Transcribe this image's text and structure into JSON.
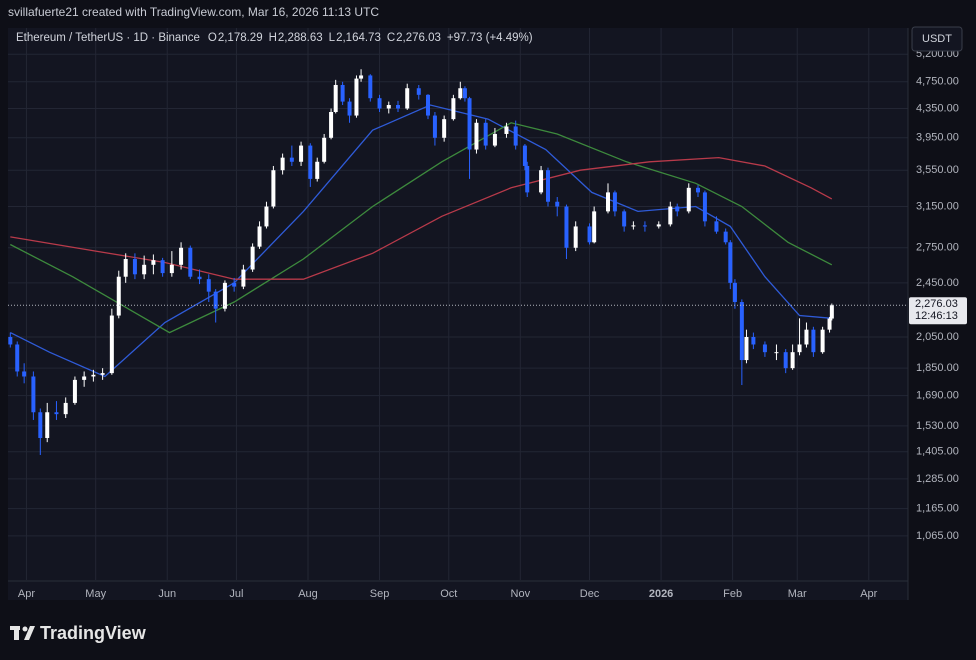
{
  "header": {
    "credit": "svillafuerte21 created with TradingView.com, Mar 16, 2026 11:13 UTC",
    "logo": "TradingView"
  },
  "chart_data": {
    "type": "candlestick",
    "symbol": "Ethereum / TetherUS · 1D · Binance",
    "ohlc_legend": [
      {
        "label": "O",
        "value": "2,178.29"
      },
      {
        "label": "H",
        "value": "2,288.63"
      },
      {
        "label": "L",
        "value": "2,164.73"
      },
      {
        "label": "C",
        "value": "2,276.03"
      }
    ],
    "change": "+97.73 (+4.49%)",
    "currency": "USDT",
    "last_price_label": "2,276.03",
    "countdown": "12:46:13",
    "log_scale": true,
    "grid": true,
    "up_color": "#ffffff",
    "down_color": "#2962ff",
    "xlim": [
      -8,
      382
    ],
    "xticks": [
      {
        "value": 0,
        "label": "Apr"
      },
      {
        "value": 30,
        "label": "May"
      },
      {
        "value": 61,
        "label": "Jun"
      },
      {
        "value": 91,
        "label": "Jul"
      },
      {
        "value": 122,
        "label": "Aug"
      },
      {
        "value": 153,
        "label": "Sep"
      },
      {
        "value": 183,
        "label": "Oct"
      },
      {
        "value": 214,
        "label": "Nov"
      },
      {
        "value": 244,
        "label": "Dec"
      },
      {
        "value": 275,
        "label": "2026"
      },
      {
        "value": 306,
        "label": "Feb"
      },
      {
        "value": 334,
        "label": "Mar"
      },
      {
        "value": 365,
        "label": "Apr"
      }
    ],
    "ylim": [
      921,
      5670
    ],
    "yticks": [
      {
        "value": 1065,
        "label": "1,065.00"
      },
      {
        "value": 1165,
        "label": "1,165.00"
      },
      {
        "value": 1285,
        "label": "1,285.00"
      },
      {
        "value": 1405,
        "label": "1,405.00"
      },
      {
        "value": 1530,
        "label": "1,530.00"
      },
      {
        "value": 1690,
        "label": "1,690.00"
      },
      {
        "value": 1850,
        "label": "1,850.00"
      },
      {
        "value": 2050,
        "label": "2,050.00"
      },
      {
        "value": 2450,
        "label": "2,450.00"
      },
      {
        "value": 2750,
        "label": "2,750.00"
      },
      {
        "value": 3150,
        "label": "3,150.00"
      },
      {
        "value": 3550,
        "label": "3,550.00"
      },
      {
        "value": 3950,
        "label": "3,950.00"
      },
      {
        "value": 4350,
        "label": "4,350.00"
      },
      {
        "value": 4750,
        "label": "4,750.00"
      },
      {
        "value": 5200,
        "label": "5,200.00"
      }
    ],
    "candles": {
      "x": [
        -7,
        -4,
        -1,
        3,
        6,
        9,
        13,
        17,
        21,
        25,
        29,
        33,
        37,
        40,
        43,
        47,
        51,
        55,
        59,
        63,
        67,
        71,
        75,
        79,
        82,
        86,
        90,
        94,
        98,
        101,
        104,
        107,
        111,
        115,
        119,
        123,
        126,
        129,
        132,
        134,
        137,
        140,
        143,
        145,
        149,
        153,
        157,
        161,
        165,
        170,
        174,
        177,
        181,
        185,
        188,
        190,
        192,
        195,
        199,
        203,
        208,
        212,
        216,
        217,
        223,
        226,
        230,
        234,
        238,
        244,
        246,
        252,
        255,
        259,
        263,
        268,
        274,
        279,
        282,
        287,
        291,
        294,
        299,
        303,
        305,
        307,
        310,
        312,
        315,
        320,
        325,
        329,
        332,
        335,
        338,
        341,
        345,
        348,
        349
      ],
      "open": [
        2050,
        2000,
        1830,
        1800,
        1600,
        1470,
        1600,
        1590,
        1650,
        1780,
        1800,
        1810,
        1820,
        2200,
        2500,
        2650,
        2520,
        2600,
        2640,
        2530,
        2600,
        2750,
        2500,
        2480,
        2380,
        2250,
        2450,
        2420,
        2560,
        2760,
        2950,
        3150,
        3550,
        3700,
        3650,
        3850,
        3450,
        3650,
        3950,
        4300,
        4700,
        4450,
        4250,
        4800,
        4850,
        4500,
        4350,
        4400,
        4350,
        4650,
        4550,
        4250,
        3950,
        4200,
        4500,
        4650,
        4500,
        3800,
        4150,
        3850,
        4000,
        4100,
        3850,
        3600,
        3300,
        3550,
        3200,
        3150,
        2750,
        2950,
        2800,
        3100,
        3300,
        3100,
        2950,
        2960,
        2950,
        2970,
        3150,
        3100,
        3350,
        3300,
        3000,
        2900,
        2800,
        2450,
        2300,
        1900,
        2050,
        2000,
        1950,
        1950,
        1850,
        1950,
        2000,
        2100,
        1950,
        2100,
        2178.29
      ],
      "high": [
        2080,
        2020,
        1880,
        1830,
        1620,
        1650,
        1660,
        1680,
        1800,
        1830,
        1840,
        1850,
        2250,
        2550,
        2700,
        2700,
        2680,
        2690,
        2660,
        2720,
        2800,
        2770,
        2560,
        2520,
        2400,
        2470,
        2490,
        2600,
        2790,
        3000,
        3200,
        3600,
        3750,
        3850,
        3900,
        3880,
        3700,
        4000,
        4350,
        4780,
        4750,
        4500,
        4850,
        4950,
        4870,
        4550,
        4450,
        4460,
        4720,
        4700,
        4560,
        4300,
        4250,
        4550,
        4750,
        4680,
        4520,
        4200,
        4200,
        4080,
        4150,
        4180,
        3870,
        3650,
        3600,
        3580,
        3250,
        3170,
        3000,
        2980,
        3150,
        3400,
        3320,
        3120,
        3000,
        3000,
        3000,
        3200,
        3180,
        3400,
        3380,
        3320,
        3050,
        2930,
        2820,
        2480,
        2320,
        2100,
        2080,
        2020,
        2000,
        1970,
        2000,
        2180,
        2150,
        2120,
        2120,
        2190,
        2288.63
      ],
      "low": [
        1980,
        1800,
        1760,
        1560,
        1390,
        1450,
        1560,
        1570,
        1640,
        1740,
        1770,
        1780,
        1810,
        2180,
        2450,
        2480,
        2480,
        2520,
        2500,
        2500,
        2560,
        2480,
        2440,
        2300,
        2150,
        2230,
        2380,
        2400,
        2540,
        2740,
        2930,
        3130,
        3500,
        3600,
        3600,
        3360,
        3420,
        3630,
        3930,
        4280,
        4400,
        4150,
        4220,
        4750,
        4450,
        4300,
        4280,
        4300,
        4330,
        4480,
        4200,
        3850,
        3900,
        4180,
        4480,
        4450,
        3450,
        3750,
        3800,
        3830,
        3950,
        3800,
        3550,
        3250,
        3280,
        3150,
        3050,
        2650,
        2720,
        2780,
        2790,
        3080,
        3050,
        2900,
        2920,
        2900,
        2930,
        2950,
        3050,
        3080,
        3250,
        2950,
        2880,
        2780,
        2400,
        2250,
        1750,
        1880,
        1970,
        1920,
        1900,
        1820,
        1840,
        1930,
        1980,
        1920,
        1940,
        2080,
        2164.73
      ],
      "close": [
        2000,
        1830,
        1800,
        1600,
        1470,
        1600,
        1590,
        1650,
        1780,
        1800,
        1810,
        1820,
        2200,
        2500,
        2650,
        2520,
        2600,
        2640,
        2530,
        2600,
        2750,
        2500,
        2480,
        2380,
        2250,
        2450,
        2420,
        2560,
        2760,
        2950,
        3150,
        3550,
        3700,
        3650,
        3850,
        3450,
        3650,
        3950,
        4300,
        4700,
        4450,
        4250,
        4800,
        4850,
        4500,
        4350,
        4400,
        4350,
        4650,
        4550,
        4250,
        3950,
        4200,
        4500,
        4650,
        4500,
        3800,
        4150,
        3850,
        4000,
        4100,
        3850,
        3600,
        3300,
        3550,
        3200,
        3150,
        2750,
        2950,
        2800,
        3100,
        3300,
        3100,
        2950,
        2960,
        2950,
        2970,
        3150,
        3100,
        3350,
        3300,
        3000,
        2900,
        2800,
        2450,
        2300,
        1900,
        2050,
        2000,
        1950,
        1950,
        1850,
        1950,
        2000,
        2100,
        1950,
        2100,
        2178.29,
        2276.03
      ]
    },
    "lines": [
      {
        "color": "#2f5bd8",
        "x": [
          -7,
          10,
          34,
          60,
          90,
          120,
          150,
          175,
          200,
          225,
          245,
          265,
          290,
          305,
          320,
          335,
          349
        ],
        "values": [
          2080,
          1950,
          1800,
          2150,
          2450,
          3100,
          4050,
          4400,
          4200,
          3800,
          3300,
          3100,
          3150,
          2950,
          2500,
          2200,
          2180
        ]
      },
      {
        "color": "#3d8a3d",
        "x": [
          -7,
          20,
          62,
          90,
          120,
          150,
          180,
          210,
          230,
          260,
          290,
          310,
          330,
          349
        ],
        "values": [
          2780,
          2500,
          2080,
          2300,
          2650,
          3150,
          3650,
          4150,
          4000,
          3650,
          3400,
          3150,
          2800,
          2600
        ]
      },
      {
        "color": "#b83a4a",
        "x": [
          -7,
          30,
          60,
          90,
          120,
          150,
          180,
          210,
          240,
          270,
          300,
          320,
          340,
          349
        ],
        "values": [
          2850,
          2720,
          2620,
          2480,
          2480,
          2700,
          3050,
          3350,
          3550,
          3650,
          3700,
          3600,
          3350,
          3230
        ]
      }
    ]
  }
}
